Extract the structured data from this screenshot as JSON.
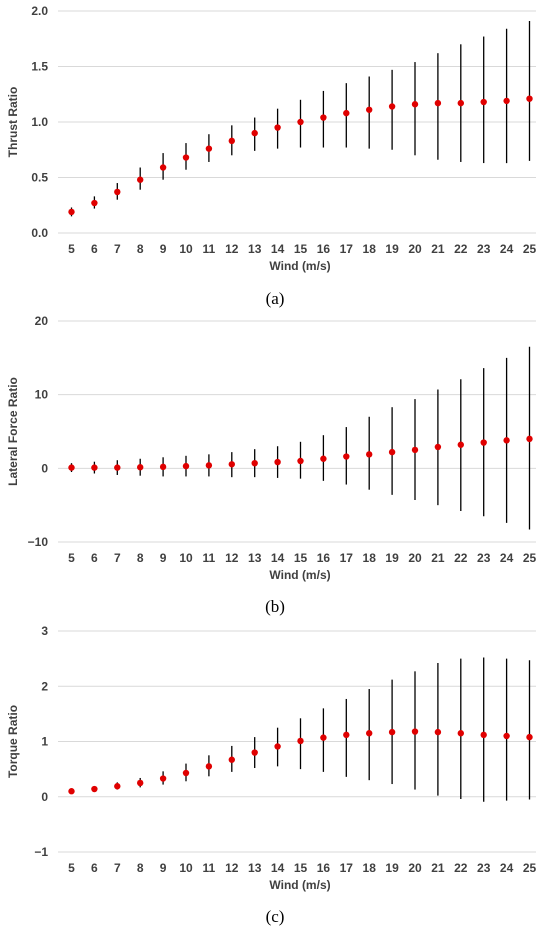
{
  "colors": {
    "marker": "#e00000",
    "errorbar": "#000000",
    "grid": "#d9d9d9",
    "text": "#404040"
  },
  "chart_data": [
    {
      "type": "scatter",
      "caption": "(a)",
      "xlabel": "Wind (m/s)",
      "ylabel": "Thrust Ratio",
      "ylim": [
        0,
        2
      ],
      "yticks": [
        0,
        0.5,
        1,
        1.5,
        2
      ],
      "ytick_labels": [
        "0.0",
        "0.5",
        "1.0",
        "1.5",
        "2.0"
      ],
      "grid": "horizontal",
      "x": [
        5,
        6,
        7,
        8,
        9,
        10,
        11,
        12,
        13,
        14,
        15,
        16,
        17,
        18,
        19,
        20,
        21,
        22,
        23,
        24,
        25
      ],
      "y": [
        0.19,
        0.27,
        0.37,
        0.48,
        0.59,
        0.68,
        0.76,
        0.83,
        0.9,
        0.95,
        1.0,
        1.04,
        1.08,
        1.11,
        1.14,
        1.16,
        1.17,
        1.17,
        1.18,
        1.19,
        1.21
      ],
      "y_low": [
        0.15,
        0.22,
        0.3,
        0.39,
        0.48,
        0.57,
        0.64,
        0.7,
        0.74,
        0.76,
        0.77,
        0.77,
        0.77,
        0.76,
        0.75,
        0.7,
        0.66,
        0.64,
        0.63,
        0.63,
        0.65
      ],
      "y_high": [
        0.23,
        0.33,
        0.45,
        0.59,
        0.72,
        0.81,
        0.89,
        0.97,
        1.04,
        1.12,
        1.2,
        1.28,
        1.35,
        1.41,
        1.47,
        1.54,
        1.62,
        1.7,
        1.77,
        1.84,
        1.91
      ]
    },
    {
      "type": "scatter",
      "caption": "(b)",
      "xlabel": "Wind (m/s)",
      "ylabel": "Lateral Force Ratio",
      "ylim": [
        -10,
        20
      ],
      "yticks": [
        -10,
        0,
        10,
        20
      ],
      "ytick_labels": [
        "−10",
        "0",
        "10",
        "20"
      ],
      "grid": "horizontal",
      "x": [
        5,
        6,
        7,
        8,
        9,
        10,
        11,
        12,
        13,
        14,
        15,
        16,
        17,
        18,
        19,
        20,
        21,
        22,
        23,
        24,
        25
      ],
      "y": [
        0.1,
        0.1,
        0.1,
        0.15,
        0.2,
        0.3,
        0.4,
        0.55,
        0.7,
        0.85,
        1.0,
        1.3,
        1.6,
        1.9,
        2.2,
        2.5,
        2.9,
        3.2,
        3.5,
        3.8,
        4.0
      ],
      "y_low": [
        -0.5,
        -0.7,
        -0.9,
        -1.0,
        -1.1,
        -1.1,
        -1.1,
        -1.2,
        -1.2,
        -1.3,
        -1.4,
        -1.7,
        -2.2,
        -2.9,
        -3.6,
        -4.3,
        -5.0,
        -5.8,
        -6.5,
        -7.4,
        -8.3
      ],
      "y_high": [
        0.7,
        0.9,
        1.1,
        1.3,
        1.5,
        1.7,
        1.9,
        2.2,
        2.6,
        3.0,
        3.6,
        4.5,
        5.6,
        7.0,
        8.3,
        9.4,
        10.7,
        12.1,
        13.6,
        15.0,
        16.5
      ]
    },
    {
      "type": "scatter",
      "caption": "(c)",
      "xlabel": "Wind (m/s)",
      "ylabel": "Torque Ratio",
      "ylim": [
        -1,
        3
      ],
      "yticks": [
        -1,
        0,
        1,
        2,
        3
      ],
      "ytick_labels": [
        "−1",
        "0",
        "1",
        "2",
        "3"
      ],
      "grid": "horizontal",
      "x": [
        5,
        6,
        7,
        8,
        9,
        10,
        11,
        12,
        13,
        14,
        15,
        16,
        17,
        18,
        19,
        20,
        21,
        22,
        23,
        24,
        25
      ],
      "y": [
        0.1,
        0.14,
        0.19,
        0.25,
        0.33,
        0.43,
        0.55,
        0.67,
        0.8,
        0.91,
        1.01,
        1.07,
        1.12,
        1.15,
        1.17,
        1.18,
        1.17,
        1.15,
        1.12,
        1.1,
        1.08
      ],
      "y_low": [
        0.07,
        0.1,
        0.13,
        0.17,
        0.22,
        0.28,
        0.37,
        0.45,
        0.52,
        0.55,
        0.5,
        0.45,
        0.36,
        0.3,
        0.23,
        0.13,
        0.02,
        -0.04,
        -0.09,
        -0.07,
        -0.05
      ],
      "y_high": [
        0.12,
        0.18,
        0.26,
        0.34,
        0.46,
        0.6,
        0.75,
        0.92,
        1.08,
        1.25,
        1.42,
        1.6,
        1.77,
        1.95,
        2.12,
        2.27,
        2.42,
        2.5,
        2.52,
        2.5,
        2.47
      ]
    }
  ]
}
